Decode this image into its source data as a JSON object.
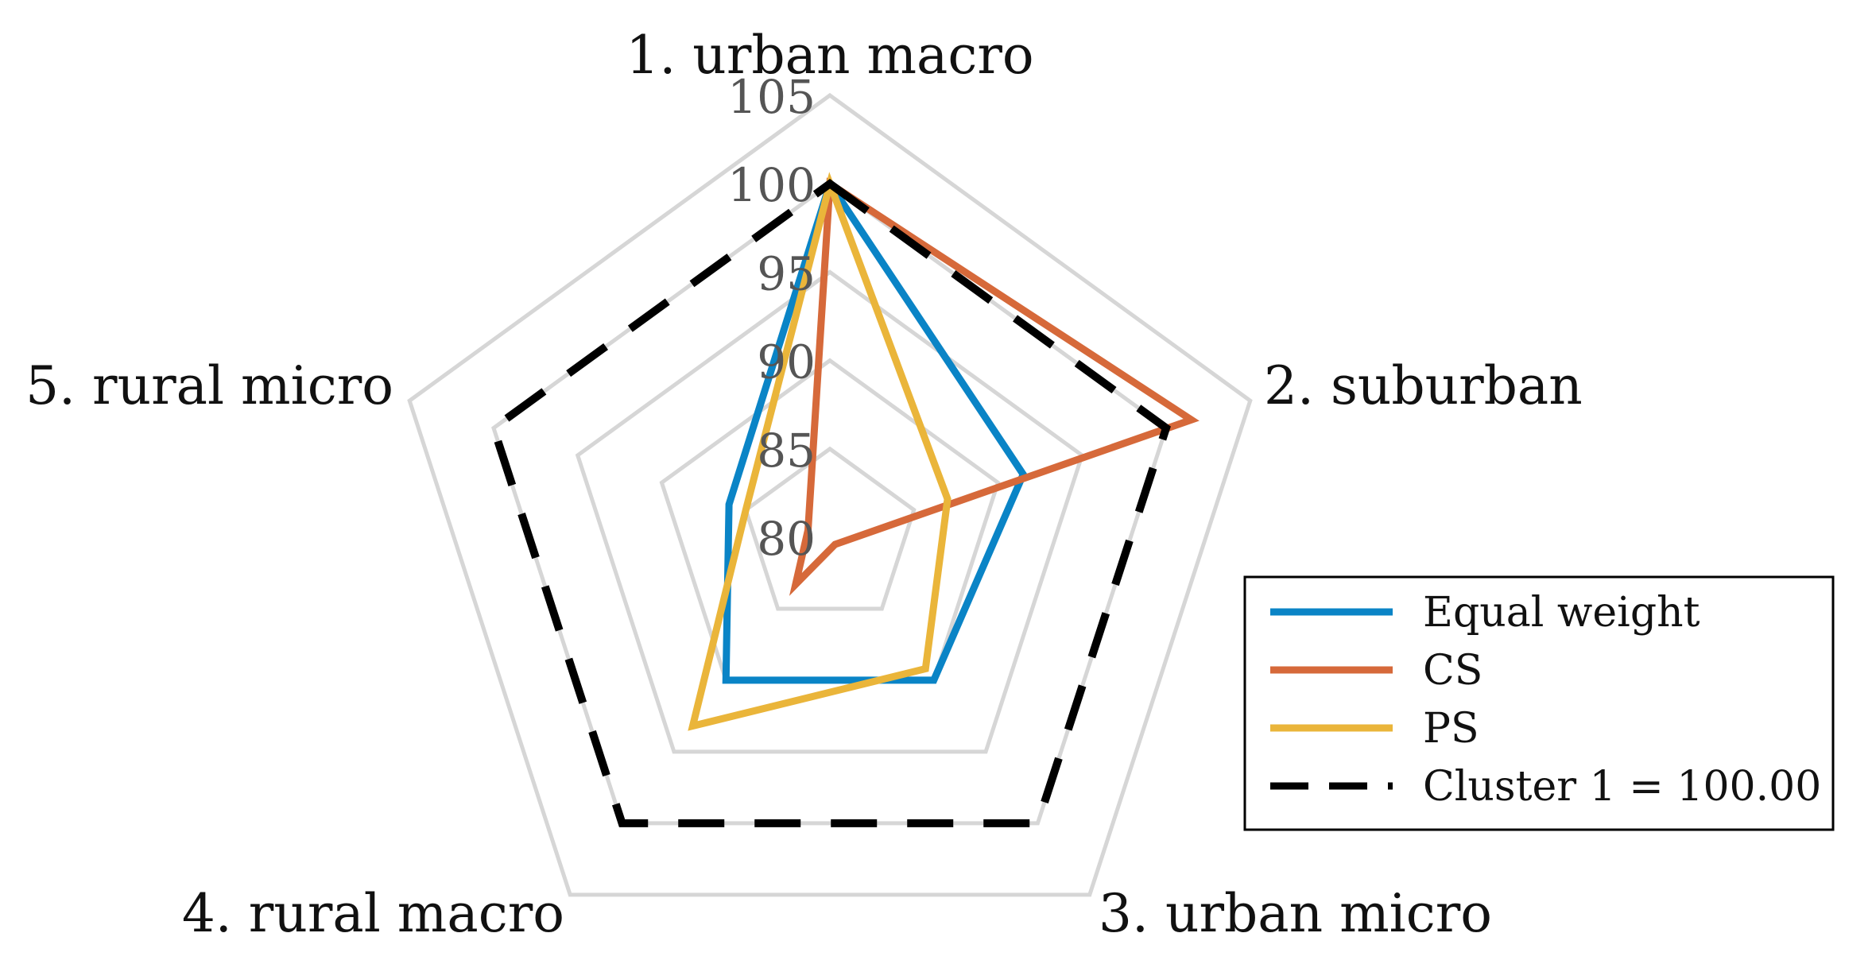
{
  "chart_data": {
    "type": "radar",
    "axes": [
      "1. urban macro",
      "2. suburban",
      "3. urban micro",
      "4. rural macro",
      "5. rural micro"
    ],
    "r_range": [
      80,
      105
    ],
    "r_ticks": [
      80,
      85,
      90,
      95,
      100,
      105
    ],
    "r_tick_labels": [
      "80",
      "85",
      "90",
      "95",
      "100",
      "105"
    ],
    "grid": true,
    "legend_position": "bottom-right",
    "series": [
      {
        "name": "Equal weight",
        "color": "#0a84c6",
        "dash": "solid",
        "values": [
          100.0,
          91.5,
          90.0,
          90.0,
          86.0
        ]
      },
      {
        "name": "CS",
        "color": "#d6693a",
        "dash": "solid",
        "values": [
          100.0,
          101.5,
          80.5,
          83.3,
          81.3
        ]
      },
      {
        "name": "PS",
        "color": "#eab53a",
        "dash": "solid",
        "values": [
          100.0,
          87.0,
          89.2,
          93.2,
          85.0
        ]
      },
      {
        "name": "Cluster 1 = 100.00",
        "color": "#000000",
        "dash": "dashed",
        "values": [
          100,
          100,
          100,
          100,
          100
        ]
      }
    ]
  }
}
